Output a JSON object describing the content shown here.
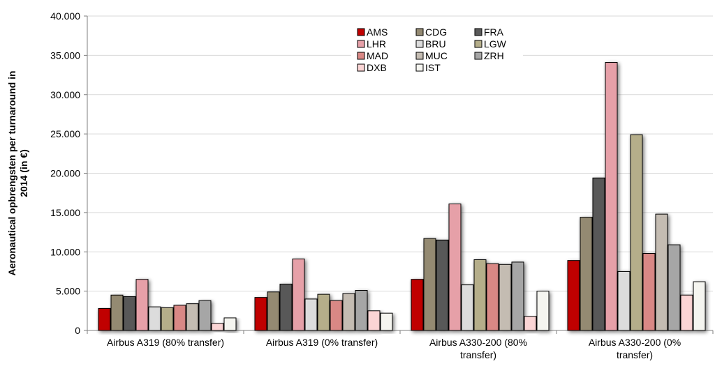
{
  "chart_data": {
    "type": "bar",
    "ylabel_lines": [
      "Aeronautical opbrengsten per turnaround in",
      "2014 (in €)"
    ],
    "ylim": [
      0,
      40000
    ],
    "yticks": [
      0,
      5000,
      10000,
      15000,
      20000,
      25000,
      30000,
      35000,
      40000
    ],
    "ytick_labels": [
      "0",
      "5.000",
      "10.000",
      "15.000",
      "20.000",
      "25.000",
      "30.000",
      "35.000",
      "40.000"
    ],
    "categories": [
      [
        "Airbus A319 (80% transfer)"
      ],
      [
        "Airbus A319 (0% transfer)"
      ],
      [
        "Airbus A330-200 (80%",
        "transfer)"
      ],
      [
        "Airbus A330-200 (0%",
        "transfer)"
      ]
    ],
    "series": [
      {
        "name": "AMS",
        "color": "#c00000",
        "values": [
          2800,
          4200,
          6500,
          8900
        ]
      },
      {
        "name": "CDG",
        "color": "#948a72",
        "values": [
          4500,
          4900,
          11700,
          14400
        ]
      },
      {
        "name": "FRA",
        "color": "#595959",
        "values": [
          4300,
          5900,
          11500,
          19400
        ]
      },
      {
        "name": "LHR",
        "color": "#e6a0a8",
        "values": [
          6500,
          9100,
          16100,
          34100
        ]
      },
      {
        "name": "BRU",
        "color": "#dcdcdc",
        "values": [
          3000,
          4000,
          5800,
          7500
        ]
      },
      {
        "name": "LGW",
        "color": "#b5ae8a",
        "values": [
          2900,
          4600,
          9000,
          24900
        ]
      },
      {
        "name": "MAD",
        "color": "#d98885",
        "values": [
          3200,
          3800,
          8500,
          9800
        ]
      },
      {
        "name": "MUC",
        "color": "#c4bcb2",
        "values": [
          3400,
          4700,
          8400,
          14800
        ]
      },
      {
        "name": "ZRH",
        "color": "#a6a6a6",
        "values": [
          3800,
          5100,
          8700,
          10900
        ]
      },
      {
        "name": "DXB",
        "color": "#fbd5d5",
        "values": [
          900,
          2500,
          1800,
          4500
        ]
      },
      {
        "name": "IST",
        "color": "#f5f5f0",
        "values": [
          1600,
          2200,
          5000,
          6200
        ]
      }
    ],
    "legend_position": "top-center",
    "grid": true
  }
}
